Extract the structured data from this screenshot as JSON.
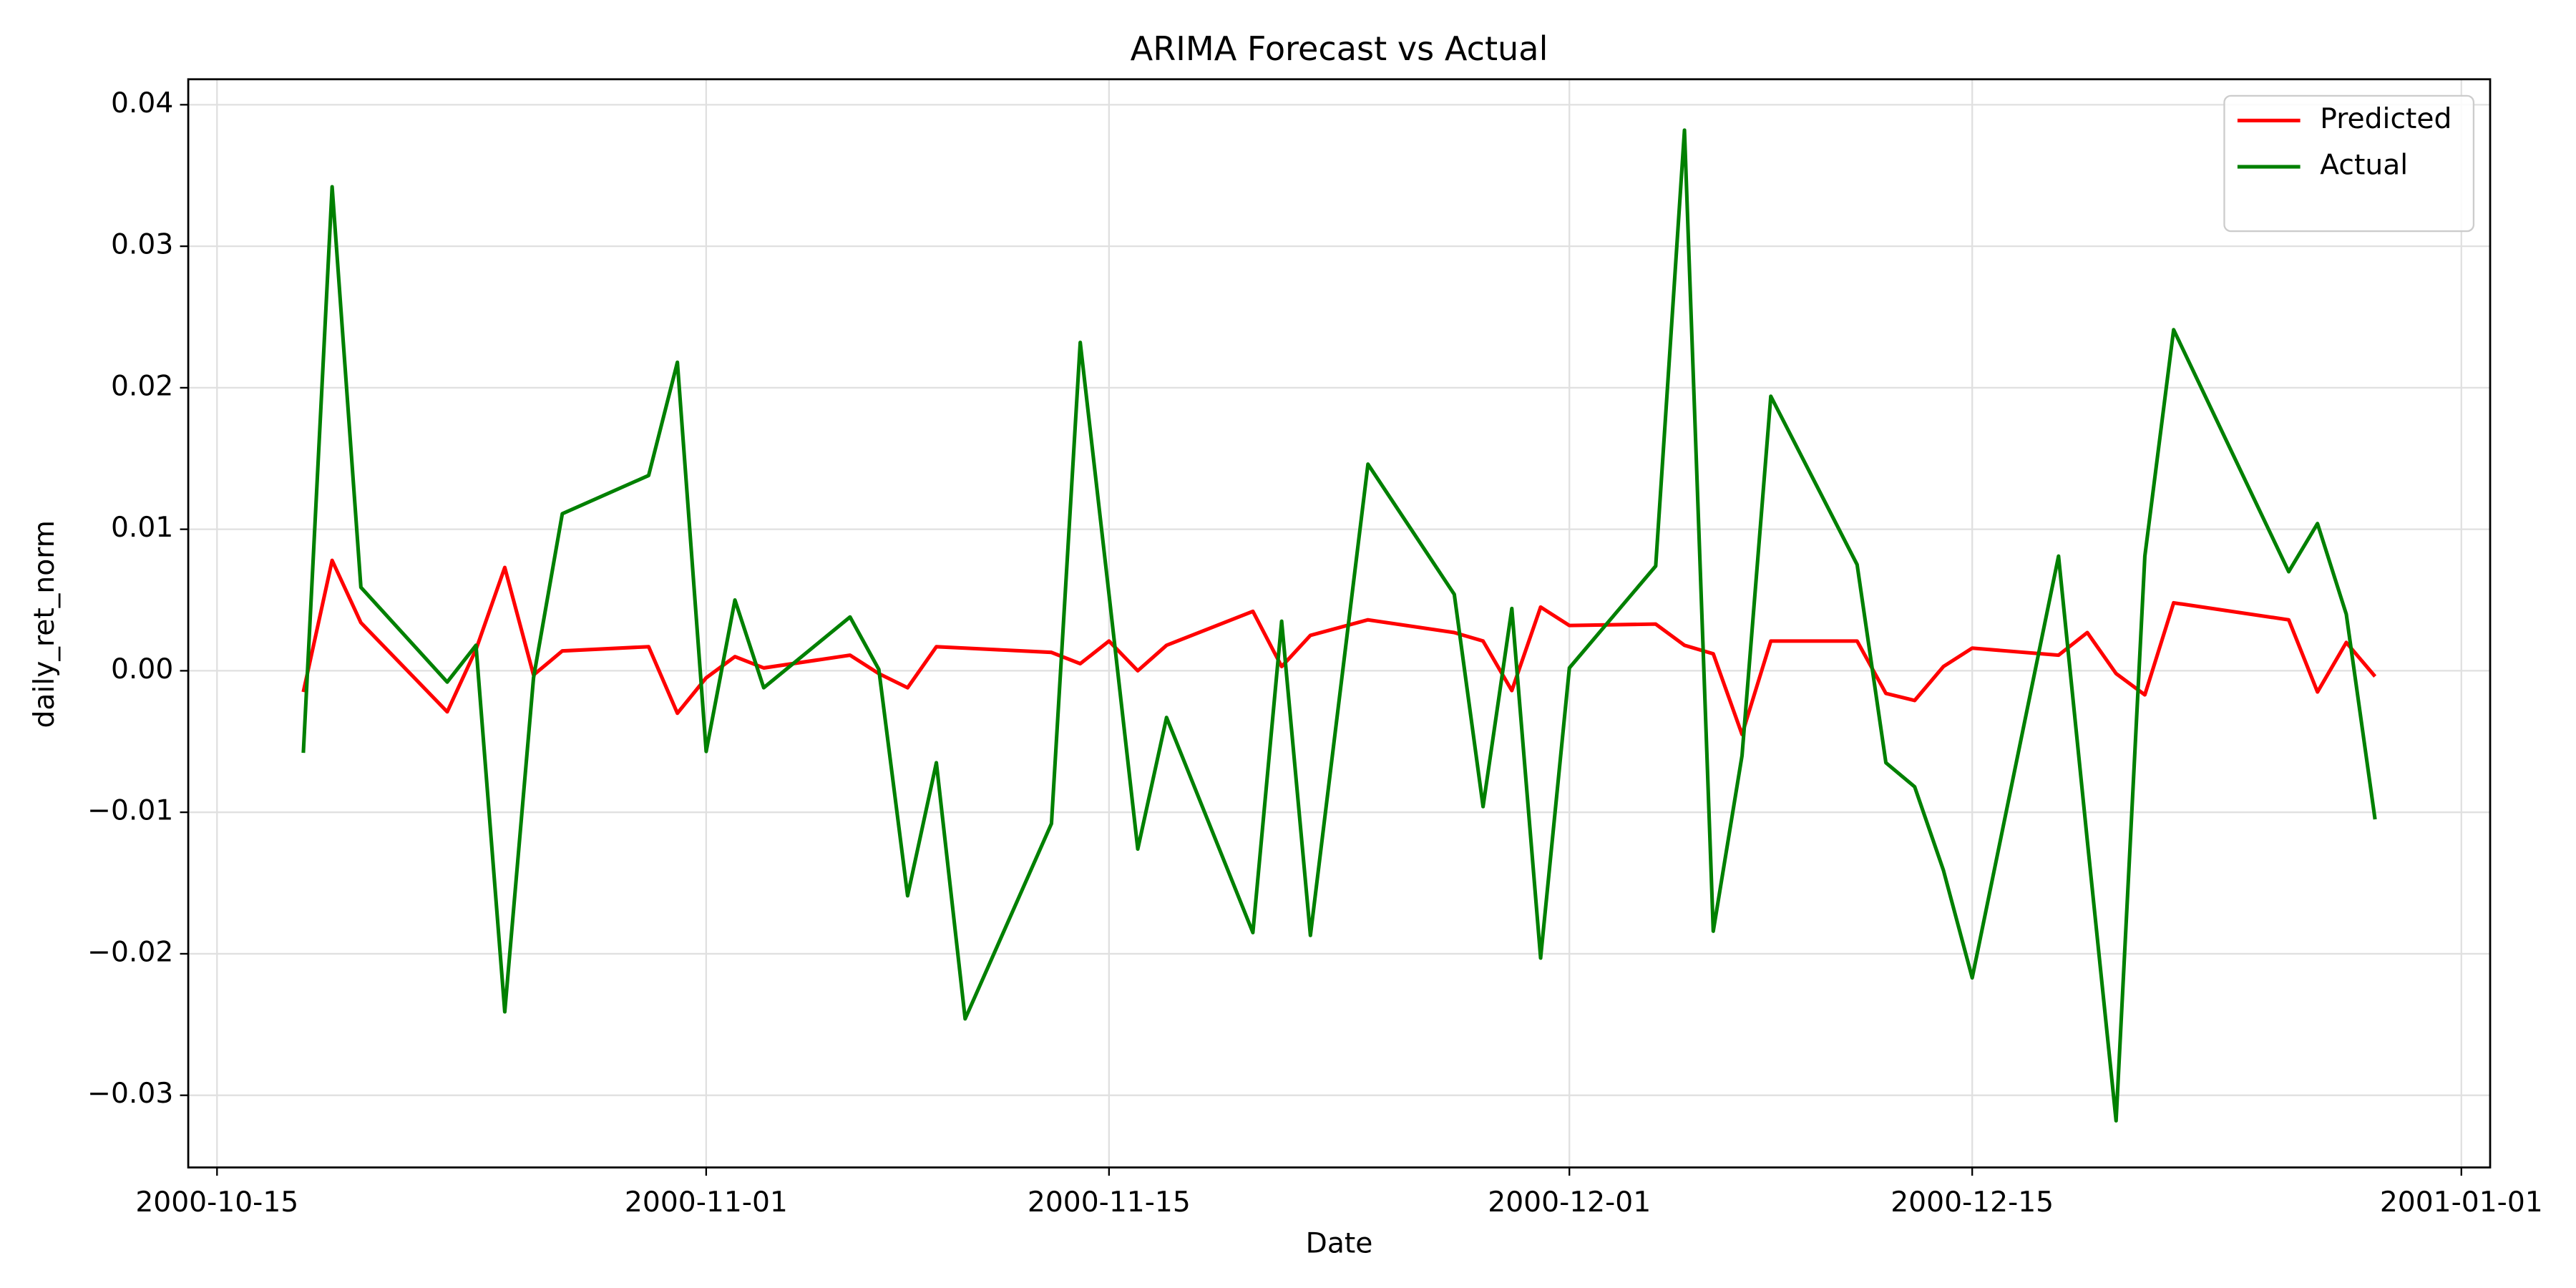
{
  "chart_data": {
    "type": "line",
    "title": "ARIMA Forecast vs Actual",
    "x_label": "Date",
    "y_label": "daily_ret_norm",
    "x": [
      "2000-10-18",
      "2000-10-19",
      "2000-10-20",
      "2000-10-23",
      "2000-10-24",
      "2000-10-25",
      "2000-10-26",
      "2000-10-27",
      "2000-10-30",
      "2000-10-31",
      "2000-11-01",
      "2000-11-02",
      "2000-11-03",
      "2000-11-06",
      "2000-11-07",
      "2000-11-08",
      "2000-11-09",
      "2000-11-10",
      "2000-11-13",
      "2000-11-14",
      "2000-11-15",
      "2000-11-16",
      "2000-11-17",
      "2000-11-20",
      "2000-11-21",
      "2000-11-22",
      "2000-11-24",
      "2000-11-27",
      "2000-11-28",
      "2000-11-29",
      "2000-11-30",
      "2000-12-01",
      "2000-12-04",
      "2000-12-05",
      "2000-12-06",
      "2000-12-07",
      "2000-12-08",
      "2000-12-11",
      "2000-12-12",
      "2000-12-13",
      "2000-12-14",
      "2000-12-15",
      "2000-12-18",
      "2000-12-19",
      "2000-12-20",
      "2000-12-21",
      "2000-12-22",
      "2000-12-26",
      "2000-12-27",
      "2000-12-28",
      "2000-12-29"
    ],
    "series": [
      {
        "name": "Predicted",
        "color": "#ff0000",
        "values": [
          -0.0015,
          0.0078,
          0.0034,
          -0.0029,
          0.0015,
          0.0073,
          -0.0003,
          0.0014,
          0.0017,
          -0.003,
          -0.0005,
          0.001,
          0.0002,
          0.0011,
          -0.0002,
          -0.0012,
          0.0017,
          0.0016,
          0.0013,
          0.0005,
          0.0021,
          0.0,
          0.0018,
          0.0042,
          0.0003,
          0.0025,
          0.0036,
          0.0027,
          0.0021,
          -0.0014,
          0.0045,
          0.0032,
          0.0033,
          0.0018,
          0.0012,
          -0.0045,
          0.0021,
          0.0021,
          -0.0016,
          -0.0021,
          0.0003,
          0.0016,
          0.0011,
          0.0027,
          -0.0002,
          -0.0017,
          0.0048,
          0.0036,
          -0.0015,
          0.002,
          -0.0004
        ]
      },
      {
        "name": "Actual",
        "color": "#008000",
        "values": [
          -0.0058,
          0.0342,
          0.0059,
          -0.0008,
          0.0018,
          -0.0241,
          -0.0005,
          0.0111,
          0.0138,
          0.0218,
          -0.0057,
          0.005,
          -0.0012,
          0.0038,
          0.0001,
          -0.0159,
          -0.0065,
          -0.0246,
          -0.0108,
          0.0232,
          0.0054,
          -0.0126,
          -0.0033,
          -0.0185,
          0.0035,
          -0.0187,
          0.0146,
          0.0054,
          -0.0096,
          0.0044,
          -0.0203,
          0.0002,
          0.0074,
          0.0382,
          -0.0184,
          -0.006,
          0.0194,
          0.0075,
          -0.0065,
          -0.0082,
          -0.0141,
          -0.0217,
          0.0081,
          -0.012,
          -0.0318,
          0.0081,
          0.0241,
          0.007,
          0.0104,
          0.004,
          -0.0105
        ]
      }
    ],
    "xlim": [
      "2000-10-14",
      "2001-01-02"
    ],
    "xticks": [
      "2000-10-15",
      "2000-11-01",
      "2000-11-15",
      "2000-12-01",
      "2000-12-15",
      "2001-01-01"
    ],
    "ylim": [
      -0.0351,
      0.0418
    ],
    "yticks": [
      {
        "value": -0.03,
        "label": "−0.03"
      },
      {
        "value": -0.02,
        "label": "−0.02"
      },
      {
        "value": -0.01,
        "label": "−0.01"
      },
      {
        "value": 0,
        "label": "0.00"
      },
      0.01,
      0.02,
      0.03,
      0.04
    ],
    "grid": true,
    "legend": "upper right"
  }
}
